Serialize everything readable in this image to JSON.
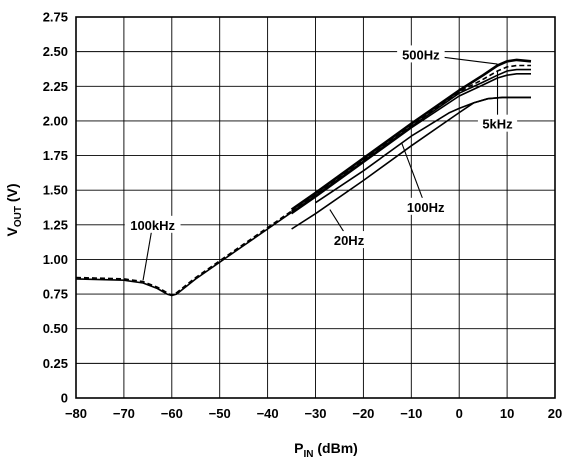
{
  "chart_data": {
    "type": "line",
    "title": "",
    "xlabel": {
      "main": "P",
      "sub": "IN",
      "unit": " (dBm)"
    },
    "ylabel": {
      "main": "V",
      "sub": "OUT",
      "unit": " (V)"
    },
    "xlim": [
      -80,
      20
    ],
    "ylim": [
      0,
      2.75
    ],
    "xticks": [
      -80,
      -70,
      -60,
      -50,
      -40,
      -30,
      -20,
      -10,
      0,
      10,
      20
    ],
    "xtick_labels": [
      "−80",
      "−70",
      "−60",
      "−50",
      "−40",
      "−30",
      "−20",
      "−10",
      "0",
      "10",
      "20"
    ],
    "yticks": [
      0,
      0.25,
      0.5,
      0.75,
      1.0,
      1.25,
      1.5,
      1.75,
      2.0,
      2.25,
      2.5,
      2.75
    ],
    "ytick_labels": [
      "0",
      "0.25",
      "0.50",
      "0.75",
      "1.00",
      "1.25",
      "1.50",
      "1.75",
      "2.00",
      "2.25",
      "2.50",
      "2.75"
    ],
    "grid": true,
    "series": [
      {
        "name": "100kHz",
        "style": "dashed",
        "width": 1.6,
        "x": [
          -80,
          -70,
          -66,
          -63,
          -61,
          -60,
          -59,
          -55,
          -50,
          -45,
          -40,
          -35
        ],
        "y": [
          0.87,
          0.86,
          0.84,
          0.8,
          0.76,
          0.74,
          0.76,
          0.87,
          0.99,
          1.11,
          1.23,
          1.35
        ]
      },
      {
        "name": "100kHz",
        "style": "solid",
        "width": 1.6,
        "x": [
          -80,
          -70,
          -66,
          -63,
          -61,
          -60,
          -59,
          -55,
          -50,
          -45,
          -40,
          -35
        ],
        "y": [
          0.86,
          0.85,
          0.83,
          0.79,
          0.75,
          0.74,
          0.75,
          0.86,
          0.98,
          1.1,
          1.22,
          1.34
        ]
      },
      {
        "name": "500Hz",
        "style": "solid",
        "width": 2.6,
        "x": [
          -35,
          -30,
          -20,
          -10,
          -5,
          0,
          5,
          8,
          10,
          12,
          15
        ],
        "y": [
          1.36,
          1.48,
          1.73,
          1.98,
          2.1,
          2.22,
          2.33,
          2.4,
          2.43,
          2.44,
          2.43
        ]
      },
      {
        "name": "5kHz",
        "style": "dashed",
        "width": 1.6,
        "x": [
          -35,
          -30,
          -20,
          -10,
          0,
          5,
          8,
          10,
          12,
          15
        ],
        "y": [
          1.35,
          1.47,
          1.72,
          1.97,
          2.21,
          2.3,
          2.36,
          2.39,
          2.4,
          2.4
        ]
      },
      {
        "name": "5kHz",
        "style": "solid",
        "width": 1.6,
        "x": [
          -35,
          -30,
          -20,
          -10,
          0,
          5,
          8,
          10,
          12,
          15
        ],
        "y": [
          1.34,
          1.46,
          1.71,
          1.96,
          2.2,
          2.28,
          2.33,
          2.36,
          2.37,
          2.37
        ]
      },
      {
        "name": "5kHz",
        "style": "solid",
        "width": 1.6,
        "x": [
          -35,
          -30,
          -20,
          -10,
          0,
          5,
          8,
          10,
          12,
          15
        ],
        "y": [
          1.33,
          1.45,
          1.7,
          1.95,
          2.18,
          2.26,
          2.31,
          2.33,
          2.34,
          2.34
        ]
      },
      {
        "name": "100Hz",
        "style": "solid",
        "width": 1.6,
        "x": [
          -30,
          -20,
          -10,
          -2,
          0,
          3,
          6,
          9,
          12,
          15
        ],
        "y": [
          1.41,
          1.64,
          1.89,
          2.06,
          2.09,
          2.13,
          2.16,
          2.17,
          2.17,
          2.17
        ]
      },
      {
        "name": "20Hz",
        "style": "solid",
        "width": 1.6,
        "x": [
          -35,
          -30,
          -20,
          -10,
          0,
          3,
          6,
          9,
          12,
          15
        ],
        "y": [
          1.22,
          1.33,
          1.57,
          1.82,
          2.06,
          2.13,
          2.16,
          2.17,
          2.17,
          2.17
        ]
      }
    ],
    "annotations": [
      {
        "text": "100kHz",
        "label": [
          -64,
          1.25
        ],
        "target": [
          -66,
          0.85
        ]
      },
      {
        "text": "500Hz",
        "label": [
          -8,
          2.48
        ],
        "target": [
          8,
          2.41
        ]
      },
      {
        "text": "5kHz",
        "label": [
          8,
          1.98
        ],
        "target": [
          8,
          2.36
        ]
      },
      {
        "text": "100Hz",
        "label": [
          -7,
          1.38
        ],
        "target": [
          -12,
          1.84
        ]
      },
      {
        "text": "20Hz",
        "label": [
          -23,
          1.14
        ],
        "target": [
          -27,
          1.36
        ]
      }
    ]
  }
}
